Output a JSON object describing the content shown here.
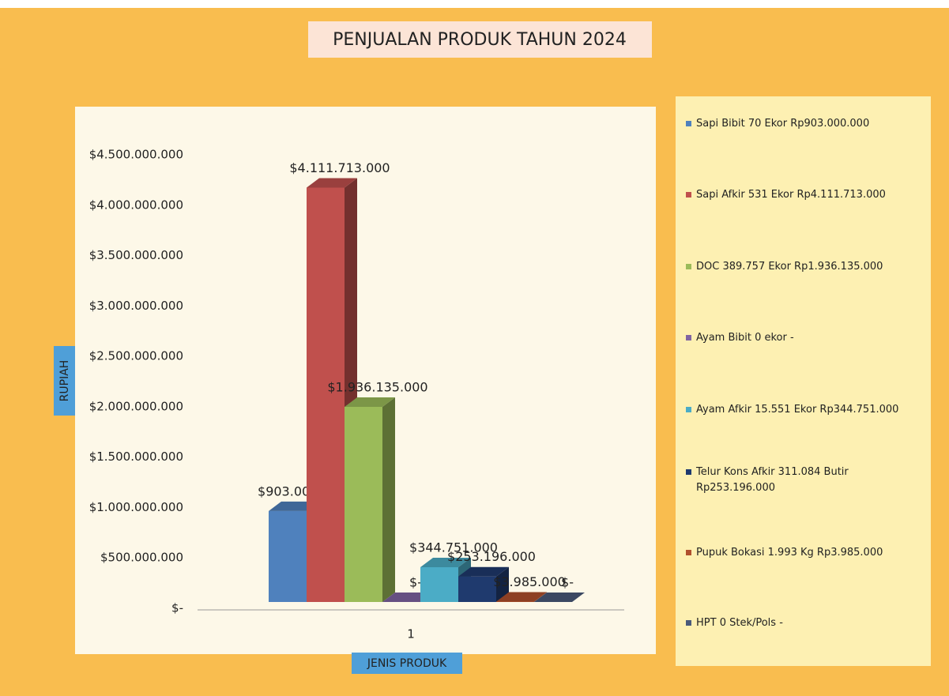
{
  "chart_data": {
    "type": "bar3d",
    "title": "PENJUALAN PRODUK TAHUN 2024",
    "x_label": "JENIS PRODUK",
    "y_label": "RUPIAH",
    "categories": [
      "1"
    ],
    "ylim": [
      0,
      4500000000
    ],
    "yticks": [
      {
        "value": 0,
        "label": "$-"
      },
      {
        "value": 500000000,
        "label": "$500.000.000"
      },
      {
        "value": 1000000000,
        "label": "$1.000.000.000"
      },
      {
        "value": 1500000000,
        "label": "$1.500.000.000"
      },
      {
        "value": 2000000000,
        "label": "$2.000.000.000"
      },
      {
        "value": 2500000000,
        "label": "$2.500.000.000"
      },
      {
        "value": 3000000000,
        "label": "$3.000.000.000"
      },
      {
        "value": 3500000000,
        "label": "$3.500.000.000"
      },
      {
        "value": 4000000000,
        "label": "$4.000.000.000"
      },
      {
        "value": 4500000000,
        "label": "$4.500.000.000"
      }
    ],
    "legend": "right",
    "series": [
      {
        "name": "Sapi Bibit 70 Ekor  Rp903.000.000",
        "color": "#4f81bd",
        "values": [
          903000000
        ],
        "value_labels": [
          "$903.000.000"
        ]
      },
      {
        "name": "Sapi Afkir 531 Ekor  Rp4.111.713.000",
        "color": "#c0504d",
        "values": [
          4111713000
        ],
        "value_labels": [
          "$4.111.713.000"
        ]
      },
      {
        "name": "DOC 389.757 Ekor  Rp1.936.135.000",
        "color": "#9bbb59",
        "values": [
          1936135000
        ],
        "value_labels": [
          "$1.936.135.000"
        ]
      },
      {
        "name": "Ayam Bibit 0 ekor  -",
        "color": "#8064a2",
        "values": [
          0
        ],
        "value_labels": [
          "$-"
        ]
      },
      {
        "name": "Ayam Afkir 15.551 Ekor  Rp344.751.000",
        "color": "#4bacc6",
        "values": [
          344751000
        ],
        "value_labels": [
          "$344.751.000"
        ]
      },
      {
        "name": "Telur Kons Afkir 311.084 Butir  Rp253.196.000",
        "color": "#1f3a6e",
        "values": [
          253196000
        ],
        "value_labels": [
          "$253.196.000"
        ]
      },
      {
        "name": "Pupuk Bokasi 1.993 Kg  Rp3.985.000",
        "color": "#b0502d",
        "values": [
          3985000
        ],
        "value_labels": [
          "$3.985.000"
        ]
      },
      {
        "name": "HPT 0 Stek/Pols  -",
        "color": "#4a5a7a",
        "values": [
          0
        ],
        "value_labels": [
          "$-"
        ]
      }
    ]
  }
}
